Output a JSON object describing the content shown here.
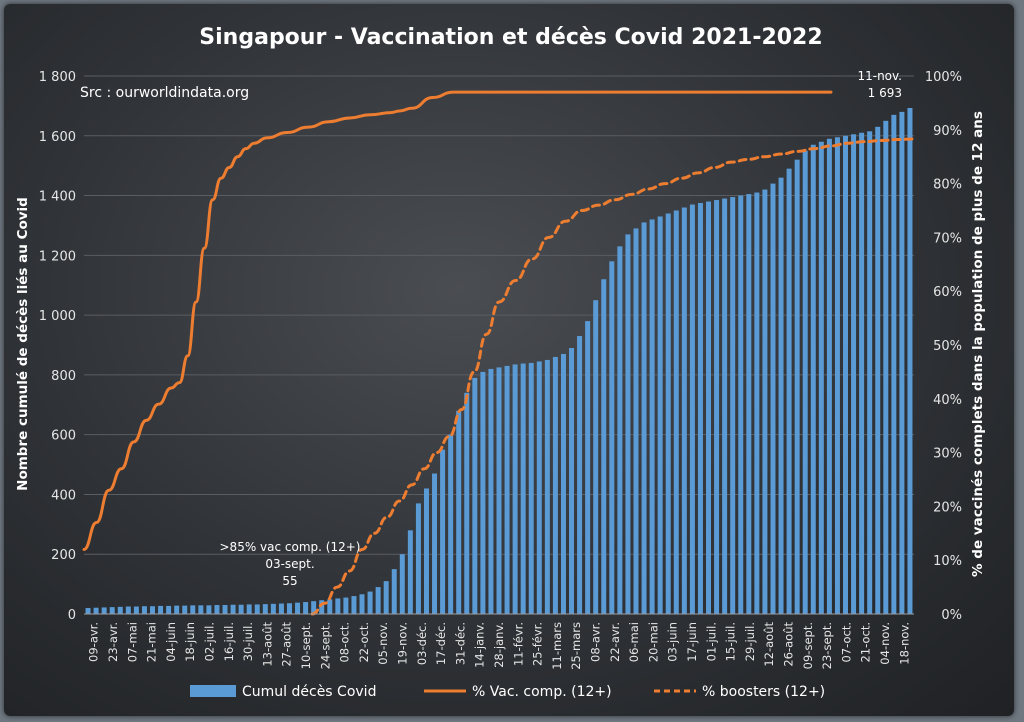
{
  "chart_data": {
    "type": "bar",
    "title": "Singapour - Vaccination et décès Covid 2021-2022",
    "source_note": "Src : ourworldindata.org",
    "ylabel_left": "Nombre cumulé de décès liés au Covid",
    "ylabel_right": "% de vaccinés complets dans  la population de plus de 12 ans",
    "ylim_left": [
      0,
      1800
    ],
    "ylim_right": [
      0,
      100
    ],
    "yticks_left": [
      "0",
      "200",
      "400",
      "600",
      "800",
      "1 000",
      "1 200",
      "1 400",
      "1 600",
      "1 800"
    ],
    "yticks_right": [
      "0%",
      "10%",
      "20%",
      "30%",
      "40%",
      "50%",
      "60%",
      "70%",
      "80%",
      "90%",
      "100%"
    ],
    "x_tick_labels": [
      "09-avr.",
      "23-avr.",
      "07-mai",
      "21-mai",
      "04-juin",
      "18-juin",
      "02-juil.",
      "16-juil.",
      "30-juil.",
      "13-août",
      "27-août",
      "10-sept.",
      "24-sept.",
      "08-oct.",
      "22-oct.",
      "05-nov.",
      "19-nov.",
      "03-déc.",
      "17-déc.",
      "31-déc.",
      "14-janv.",
      "28-janv.",
      "11-févr.",
      "25-févr.",
      "11-mars",
      "25-mars",
      "08-avr.",
      "22-avr.",
      "06-mai",
      "20-mai",
      "03-juin",
      "17-juin",
      "01-juil.",
      "15-juil.",
      "29-juil.",
      "12-août",
      "26-août",
      "09-sept.",
      "23-sept.",
      "07-oct.",
      "21-oct.",
      "04-nov.",
      "18-nov."
    ],
    "grid": true,
    "legend_position": "bottom",
    "series": [
      {
        "name": "Cumul décès Covid",
        "kind": "bar",
        "axis": "left",
        "color": "#5b9bd5",
        "values": [
          20,
          21,
          22,
          23,
          24,
          25,
          25,
          26,
          26,
          27,
          27,
          28,
          28,
          29,
          29,
          29,
          30,
          30,
          31,
          31,
          32,
          32,
          33,
          34,
          35,
          36,
          38,
          40,
          43,
          46,
          49,
          52,
          55,
          60,
          66,
          75,
          90,
          110,
          150,
          200,
          280,
          370,
          420,
          470,
          550,
          600,
          680,
          740,
          790,
          810,
          820,
          825,
          830,
          835,
          838,
          840,
          845,
          850,
          860,
          870,
          890,
          930,
          980,
          1050,
          1120,
          1180,
          1230,
          1270,
          1290,
          1310,
          1320,
          1330,
          1340,
          1350,
          1360,
          1370,
          1375,
          1380,
          1385,
          1390,
          1395,
          1400,
          1405,
          1410,
          1420,
          1440,
          1460,
          1490,
          1520,
          1550,
          1570,
          1580,
          1590,
          1595,
          1600,
          1605,
          1610,
          1615,
          1630,
          1650,
          1670,
          1680,
          1693
        ]
      },
      {
        "name": "% Vac. comp. (12+)",
        "kind": "line",
        "axis": "right",
        "color": "#ed7d31",
        "dash": "solid",
        "x_index": [
          0,
          3,
          6,
          9,
          12,
          15,
          18,
          21,
          23,
          25,
          27,
          29,
          31,
          33,
          35,
          37,
          39,
          41,
          44,
          49,
          54,
          59,
          64,
          69,
          74,
          76,
          79,
          84,
          89,
          94,
          99,
          104,
          109,
          114,
          119,
          124,
          129,
          134,
          139,
          144,
          149,
          154,
          159,
          164,
          169,
          174,
          179,
          180
        ],
        "values": [
          12,
          17,
          23,
          27,
          32,
          36,
          39,
          42,
          43,
          48,
          58,
          68,
          77,
          81,
          83,
          85,
          86.5,
          87.5,
          88.5,
          89.5,
          90.5,
          91.5,
          92.2,
          92.8,
          93.2,
          93.5,
          94,
          96,
          97,
          97,
          97,
          97,
          97,
          97,
          97,
          97,
          97,
          97,
          97,
          97,
          97,
          97,
          97,
          97,
          97,
          97,
          97,
          97
        ]
      },
      {
        "name": "% boosters (12+)",
        "kind": "line",
        "axis": "right",
        "color": "#ed7d31",
        "dash": "dashed",
        "x_index": [
          55,
          58,
          61,
          64,
          67,
          70,
          73,
          76,
          79,
          82,
          85,
          88,
          91,
          94,
          97,
          100,
          104,
          108,
          112,
          116,
          120,
          124,
          128,
          132,
          136,
          140,
          144,
          148,
          152,
          156,
          160,
          164,
          168,
          172,
          176,
          180,
          184,
          188,
          192,
          196,
          200
        ],
        "values": [
          0,
          2,
          5,
          8,
          12,
          15,
          18,
          21,
          24,
          27,
          30,
          33,
          38,
          45,
          52,
          58,
          62,
          66,
          70,
          73,
          75,
          76,
          77,
          78,
          79,
          80,
          81,
          82,
          83,
          84,
          84.5,
          85,
          85.5,
          86,
          86.5,
          87,
          87.5,
          87.8,
          88,
          88.2,
          88.3
        ]
      }
    ],
    "annotations": [
      {
        "lines": [
          ">85% vac comp. (12+)",
          "03-sept.",
          "55"
        ]
      },
      {
        "lines": [
          "11-nov.",
          "1 693"
        ]
      }
    ]
  }
}
